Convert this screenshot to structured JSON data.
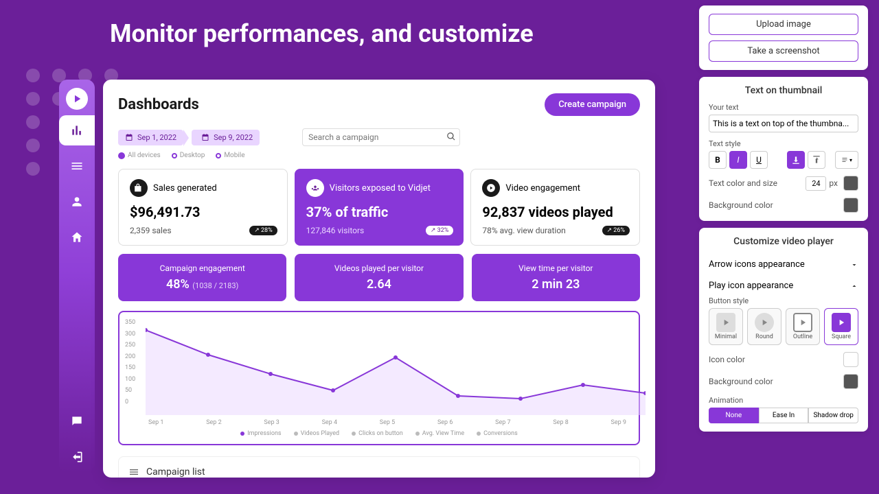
{
  "page_title": "Monitor performances, and customize",
  "dashboard": {
    "title": "Dashboards",
    "create_btn": "Create campaign",
    "date_from": "Sep 1, 2022",
    "date_to": "Sep 9, 2022",
    "search_placeholder": "Search a campaign",
    "devices": [
      "All devices",
      "Desktop",
      "Mobile"
    ],
    "kpis": [
      {
        "title": "Sales generated",
        "value": "$96,491.73",
        "sub": "2,359 sales",
        "delta": "28%"
      },
      {
        "title": "Visitors exposed to Vidjet",
        "value": "37% of traffic",
        "sub": "127,846 visitors",
        "delta": "32%",
        "hl": true
      },
      {
        "title": "Video engagement",
        "value": "92,837 videos played",
        "sub": "78% avg. view duration",
        "delta": "26%"
      }
    ],
    "stats": [
      {
        "label": "Campaign engagement",
        "value": "48%",
        "extra": "(1038 / 2183)"
      },
      {
        "label": "Videos played per visitor",
        "value": "2.64"
      },
      {
        "label": "View time per visitor",
        "value": "2 min 23"
      }
    ],
    "chart": {
      "y_ticks": [
        "350",
        "300",
        "250",
        "200",
        "150",
        "100",
        "50",
        "0"
      ],
      "x_ticks": [
        "Sep 1",
        "Sep 2",
        "Sep 3",
        "Sep 4",
        "Sep 5",
        "Sep 6",
        "Sep 7",
        "Sep 8",
        "Sep 9"
      ],
      "series": [
        310,
        220,
        150,
        90,
        210,
        70,
        60,
        110,
        80
      ],
      "ylim": [
        0,
        350
      ],
      "line_color": "#8837d8",
      "fill_color": "#e9d5ff",
      "legend": [
        "Impressions",
        "Videos Played",
        "Clicks on button",
        "Avg. View Time",
        "Conversions"
      ]
    },
    "campaign_list": "Campaign list"
  },
  "right": {
    "upload_btn": "Upload image",
    "screenshot_btn": "Take a screenshot",
    "thumb_title": "Text on thumbnail",
    "your_text_label": "Your text",
    "your_text_value": "This is a text on top of the thumbna...",
    "text_style_label": "Text style",
    "color_size_label": "Text color and size",
    "font_size": "24",
    "bg_label": "Background color",
    "player_title": "Customize video player",
    "arrow_acc": "Arrow icons appearance",
    "play_acc": "Play icon appearance",
    "btn_style_label": "Button style",
    "btn_styles": [
      "Minimal",
      "Round",
      "Outline",
      "Square"
    ],
    "icon_color_label": "Icon color",
    "bg2_label": "Background color",
    "anim_label": "Animation",
    "anim_opts": [
      "None",
      "Ease In",
      "Shadow drop"
    ]
  }
}
